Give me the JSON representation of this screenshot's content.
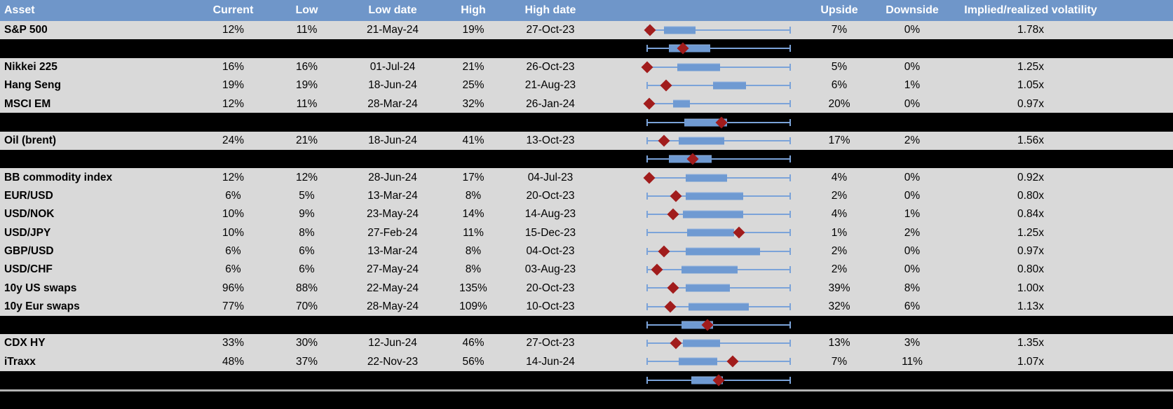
{
  "colors": {
    "header_bg": "#6f96c9",
    "header_text": "#ffffff",
    "row_bg": "#d9d9d9",
    "separator_bg": "#000000",
    "whisker_blue": "#7ba3d9",
    "box_blue": "#6f9ad2",
    "marker_red": "#a11c1c",
    "bottom_line_gray": "#b3b3b3"
  },
  "table": {
    "columns": [
      "Asset",
      "Current",
      "Low",
      "Low date",
      "High",
      "High date",
      "",
      "Upside",
      "Downside",
      "Implied/realized volatility",
      ""
    ],
    "rows": [
      {
        "kind": "data",
        "asset": "S&P 500",
        "current": "12%",
        "low": "11%",
        "low_date": "21-May-24",
        "high": "19%",
        "high_date": "27-Oct-23",
        "upside": "7%",
        "downside": "0%",
        "iv_rv": "1.78x",
        "box": [
          0.12,
          0.34
        ],
        "marker": 0.02
      },
      {
        "kind": "sep",
        "box": [
          0.15,
          0.44
        ],
        "marker": 0.25
      },
      {
        "kind": "data",
        "asset": "Nikkei 225",
        "current": "16%",
        "low": "16%",
        "low_date": "01-Jul-24",
        "high": "21%",
        "high_date": "26-Oct-23",
        "upside": "5%",
        "downside": "0%",
        "iv_rv": "1.25x",
        "box": [
          0.21,
          0.51
        ],
        "marker": 0.0
      },
      {
        "kind": "data",
        "asset": "Hang Seng",
        "current": "19%",
        "low": "19%",
        "low_date": "18-Jun-24",
        "high": "25%",
        "high_date": "21-Aug-23",
        "upside": "6%",
        "downside": "1%",
        "iv_rv": "1.05x",
        "box": [
          0.46,
          0.69
        ],
        "marker": 0.13
      },
      {
        "kind": "data",
        "asset": "MSCI EM",
        "current": "12%",
        "low": "11%",
        "low_date": "28-Mar-24",
        "high": "32%",
        "high_date": "26-Jan-24",
        "upside": "20%",
        "downside": "0%",
        "iv_rv": "0.97x",
        "box": [
          0.18,
          0.3
        ],
        "marker": 0.015
      },
      {
        "kind": "sep",
        "box": [
          0.26,
          0.56
        ],
        "marker": 0.52
      },
      {
        "kind": "data",
        "asset": "Oil (brent)",
        "current": "24%",
        "low": "21%",
        "low_date": "18-Jun-24",
        "high": "41%",
        "high_date": "13-Oct-23",
        "upside": "17%",
        "downside": "2%",
        "iv_rv": "1.56x",
        "box": [
          0.22,
          0.54
        ],
        "marker": 0.12
      },
      {
        "kind": "sep",
        "box": [
          0.15,
          0.45
        ],
        "marker": 0.32
      },
      {
        "kind": "data",
        "asset": "BB commodity index",
        "current": "12%",
        "low": "12%",
        "low_date": "28-Jun-24",
        "high": "17%",
        "high_date": "04-Jul-23",
        "upside": "4%",
        "downside": "0%",
        "iv_rv": "0.92x",
        "box": [
          0.27,
          0.56
        ],
        "marker": 0.015
      },
      {
        "kind": "data",
        "asset": "EUR/USD",
        "current": "6%",
        "low": "5%",
        "low_date": "13-Mar-24",
        "high": "8%",
        "high_date": "20-Oct-23",
        "upside": "2%",
        "downside": "0%",
        "iv_rv": "0.80x",
        "box": [
          0.27,
          0.67
        ],
        "marker": 0.2
      },
      {
        "kind": "data",
        "asset": "USD/NOK",
        "current": "10%",
        "low": "9%",
        "low_date": "23-May-24",
        "high": "14%",
        "high_date": "14-Aug-23",
        "upside": "4%",
        "downside": "1%",
        "iv_rv": "0.84x",
        "box": [
          0.25,
          0.67
        ],
        "marker": 0.18
      },
      {
        "kind": "data",
        "asset": "USD/JPY",
        "current": "10%",
        "low": "8%",
        "low_date": "27-Feb-24",
        "high": "11%",
        "high_date": "15-Dec-23",
        "upside": "1%",
        "downside": "2%",
        "iv_rv": "1.25x",
        "box": [
          0.28,
          0.61
        ],
        "marker": 0.64
      },
      {
        "kind": "data",
        "asset": "GBP/USD",
        "current": "6%",
        "low": "6%",
        "low_date": "13-Mar-24",
        "high": "8%",
        "high_date": "04-Oct-23",
        "upside": "2%",
        "downside": "0%",
        "iv_rv": "0.97x",
        "box": [
          0.27,
          0.79
        ],
        "marker": 0.12
      },
      {
        "kind": "data",
        "asset": "USD/CHF",
        "current": "6%",
        "low": "6%",
        "low_date": "27-May-24",
        "high": "8%",
        "high_date": "03-Aug-23",
        "upside": "2%",
        "downside": "0%",
        "iv_rv": "0.80x",
        "box": [
          0.24,
          0.63
        ],
        "marker": 0.07
      },
      {
        "kind": "data",
        "asset": "10y US swaps",
        "current": "96%",
        "low": "88%",
        "low_date": "22-May-24",
        "high": "135%",
        "high_date": "20-Oct-23",
        "upside": "39%",
        "downside": "8%",
        "iv_rv": "1.00x",
        "box": [
          0.27,
          0.58
        ],
        "marker": 0.18
      },
      {
        "kind": "data",
        "asset": "10y Eur swaps",
        "current": "77%",
        "low": "70%",
        "low_date": "28-May-24",
        "high": "109%",
        "high_date": "10-Oct-23",
        "upside": "32%",
        "downside": "6%",
        "iv_rv": "1.13x",
        "box": [
          0.29,
          0.71
        ],
        "marker": 0.16
      },
      {
        "kind": "sep",
        "box": [
          0.24,
          0.46
        ],
        "marker": 0.42
      },
      {
        "kind": "data",
        "asset": "CDX HY",
        "current": "33%",
        "low": "30%",
        "low_date": "12-Jun-24",
        "high": "46%",
        "high_date": "27-Oct-23",
        "upside": "13%",
        "downside": "3%",
        "iv_rv": "1.35x",
        "box": [
          0.25,
          0.51
        ],
        "marker": 0.2
      },
      {
        "kind": "data",
        "asset": "iTraxx",
        "current": "48%",
        "low": "37%",
        "low_date": "22-Nov-23",
        "high": "56%",
        "high_date": "14-Jun-24",
        "upside": "7%",
        "downside": "11%",
        "iv_rv": "1.07x",
        "box": [
          0.22,
          0.49
        ],
        "marker": 0.6
      },
      {
        "kind": "sep",
        "box": [
          0.31,
          0.53
        ],
        "marker": 0.5
      }
    ]
  },
  "chart_data": {
    "type": "table",
    "title": "Implied volatility: current level vs 1-year low/high range, upside/downside and implied/realized ratio, with per-row range box plots",
    "columns": [
      "Asset",
      "Current",
      "Low",
      "Low date",
      "High",
      "High date",
      "Upside",
      "Downside",
      "Implied/realized volatility"
    ],
    "assets": [
      "S&P 500",
      "Nikkei 225",
      "Hang Seng",
      "MSCI EM",
      "Oil (brent)",
      "BB commodity index",
      "EUR/USD",
      "USD/NOK",
      "USD/JPY",
      "GBP/USD",
      "USD/CHF",
      "10y US swaps",
      "10y Eur swaps",
      "CDX HY",
      "iTraxx"
    ],
    "current_pct": [
      12,
      16,
      19,
      12,
      24,
      12,
      6,
      10,
      10,
      6,
      6,
      96,
      77,
      33,
      48
    ],
    "low_pct": [
      11,
      16,
      19,
      11,
      21,
      12,
      5,
      9,
      8,
      6,
      6,
      88,
      70,
      30,
      37
    ],
    "low_dates": [
      "21-May-24",
      "01-Jul-24",
      "18-Jun-24",
      "28-Mar-24",
      "18-Jun-24",
      "28-Jun-24",
      "13-Mar-24",
      "23-May-24",
      "27-Feb-24",
      "13-Mar-24",
      "27-May-24",
      "22-May-24",
      "28-May-24",
      "12-Jun-24",
      "22-Nov-23"
    ],
    "high_pct": [
      19,
      21,
      25,
      32,
      41,
      17,
      8,
      14,
      11,
      8,
      8,
      135,
      109,
      46,
      56
    ],
    "high_dates": [
      "27-Oct-23",
      "26-Oct-23",
      "21-Aug-23",
      "26-Jan-24",
      "13-Oct-23",
      "04-Jul-23",
      "20-Oct-23",
      "14-Aug-23",
      "15-Dec-23",
      "04-Oct-23",
      "03-Aug-23",
      "20-Oct-23",
      "10-Oct-23",
      "27-Oct-23",
      "14-Jun-24"
    ],
    "upside_pct": [
      7,
      5,
      6,
      20,
      17,
      4,
      2,
      4,
      1,
      2,
      2,
      39,
      32,
      13,
      7
    ],
    "downside_pct": [
      0,
      0,
      1,
      0,
      2,
      0,
      0,
      1,
      2,
      0,
      0,
      8,
      6,
      3,
      11
    ],
    "implied_realized": [
      1.78,
      1.25,
      1.05,
      0.97,
      1.56,
      0.92,
      0.8,
      0.84,
      1.25,
      0.97,
      0.8,
      1.0,
      1.13,
      1.35,
      1.07
    ],
    "boxplots": {
      "scale": "x-axis normalized per row: 0 = 1y low (left whisker cap), 1 = 1y high (right whisker cap)",
      "marker": "red diamond = current level position within low-high range",
      "box": "blue box = estimated interquartile range as fraction of range",
      "asset_rows": [
        {
          "asset": "S&P 500",
          "box": [
            0.12,
            0.34
          ],
          "marker": 0.02
        },
        {
          "asset": "Nikkei 225",
          "box": [
            0.21,
            0.51
          ],
          "marker": 0.0
        },
        {
          "asset": "Hang Seng",
          "box": [
            0.46,
            0.69
          ],
          "marker": 0.13
        },
        {
          "asset": "MSCI EM",
          "box": [
            0.18,
            0.3
          ],
          "marker": 0.015
        },
        {
          "asset": "Oil (brent)",
          "box": [
            0.22,
            0.54
          ],
          "marker": 0.12
        },
        {
          "asset": "BB commodity index",
          "box": [
            0.27,
            0.56
          ],
          "marker": 0.015
        },
        {
          "asset": "EUR/USD",
          "box": [
            0.27,
            0.67
          ],
          "marker": 0.2
        },
        {
          "asset": "USD/NOK",
          "box": [
            0.25,
            0.67
          ],
          "marker": 0.18
        },
        {
          "asset": "USD/JPY",
          "box": [
            0.28,
            0.61
          ],
          "marker": 0.64
        },
        {
          "asset": "GBP/USD",
          "box": [
            0.27,
            0.79
          ],
          "marker": 0.12
        },
        {
          "asset": "USD/CHF",
          "box": [
            0.24,
            0.63
          ],
          "marker": 0.07
        },
        {
          "asset": "10y US swaps",
          "box": [
            0.27,
            0.58
          ],
          "marker": 0.18
        },
        {
          "asset": "10y Eur swaps",
          "box": [
            0.29,
            0.71
          ],
          "marker": 0.16
        },
        {
          "asset": "CDX HY",
          "box": [
            0.25,
            0.51
          ],
          "marker": 0.2
        },
        {
          "asset": "iTraxx",
          "box": [
            0.22,
            0.49
          ],
          "marker": 0.6
        }
      ],
      "black_summary_rows": [
        {
          "position": "after S&P 500",
          "box": [
            0.15,
            0.44
          ],
          "marker": 0.25
        },
        {
          "position": "after MSCI EM",
          "box": [
            0.26,
            0.56
          ],
          "marker": 0.52
        },
        {
          "position": "after Oil (brent)",
          "box": [
            0.15,
            0.45
          ],
          "marker": 0.32
        },
        {
          "position": "after 10y Eur swaps",
          "box": [
            0.24,
            0.46
          ],
          "marker": 0.42
        },
        {
          "position": "after iTraxx",
          "box": [
            0.31,
            0.53
          ],
          "marker": 0.5
        }
      ]
    }
  }
}
